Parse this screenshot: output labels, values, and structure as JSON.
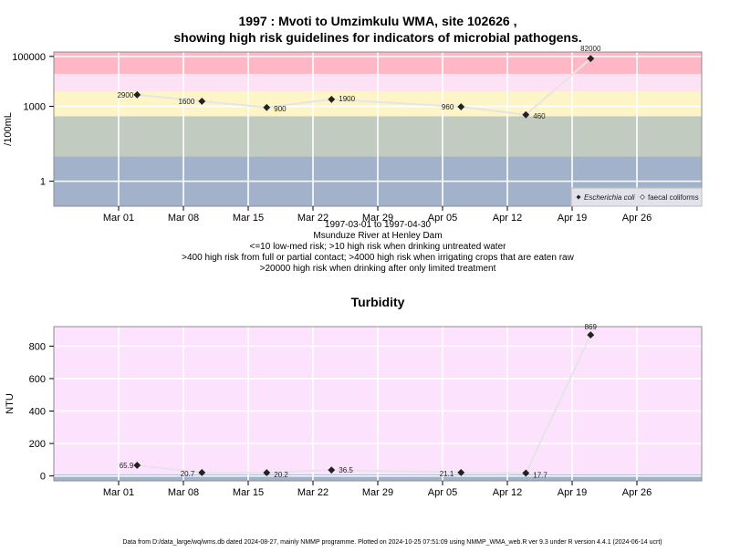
{
  "page": {
    "footer": "Data from D:/data_large/wq/wms.db dated 2024-08-27, mainly NMMP programme. Plotted on 2024-10-25 07:51:09 using NMMP_WMA_web.R ver 9.3 under R version 4.4.1 (2024-06-14 ucrt)"
  },
  "chart_data": [
    {
      "type": "line",
      "title_lines": [
        "1997 : Mvoti to Umzimkulu WMA, site 102626 ,",
        "showing high risk guidelines for indicators of microbial pathogens."
      ],
      "ylabel": "/100mL",
      "yscale": "log",
      "ylim": [
        0.1,
        150000
      ],
      "yticks": [
        {
          "value": 1,
          "label": "1"
        },
        {
          "value": 1000,
          "label": "1000"
        },
        {
          "value": 100000,
          "label": "100000"
        }
      ],
      "xticks": [
        "Mar 01",
        "Mar 08",
        "Mar 15",
        "Mar 22",
        "Mar 29",
        "Apr 05",
        "Apr 12",
        "Apr 19",
        "Apr 26"
      ],
      "xlabel_lines": [
        "1997-03-01 to 1997-04-30",
        "Msunduze River at Henley Dam",
        "<=10 low-med risk; >10 high risk when drinking untreated water",
        ">400 high risk from full or partial contact; >4000 high risk when irrigating crops that are eaten raw",
        ">20000 high risk when drinking after only limited treatment"
      ],
      "bands": [
        {
          "from": 0.1,
          "to": 10,
          "color": "#a3b2cb"
        },
        {
          "from": 10,
          "to": 400,
          "color": "#c2cbc0"
        },
        {
          "from": 400,
          "to": 4000,
          "color": "#fdf5c8"
        },
        {
          "from": 4000,
          "to": 20000,
          "color": "#fde2f6"
        },
        {
          "from": 20000,
          "to": 150000,
          "color": "#ffb6c5"
        }
      ],
      "legend": {
        "position": "bottom-right",
        "entries": [
          "Escherichia coli",
          "faecal coliforms"
        ]
      },
      "series": [
        {
          "name": "Escherichia coli",
          "color": "#e5e5e5",
          "points": [
            {
              "x": "1997-03-03",
              "y": 2900,
              "label": "2900"
            },
            {
              "x": "1997-03-10",
              "y": 1600,
              "label": "1600"
            },
            {
              "x": "1997-03-17",
              "y": 900,
              "label": "900"
            },
            {
              "x": "1997-03-24",
              "y": 1900,
              "label": "1900"
            },
            {
              "x": "1997-04-07",
              "y": 960,
              "label": "960"
            },
            {
              "x": "1997-04-14",
              "y": 460,
              "label": "460"
            },
            {
              "x": "1997-04-21",
              "y": 82000,
              "label": "82000"
            }
          ]
        }
      ]
    },
    {
      "type": "line",
      "title": "Turbidity",
      "ylabel": "NTU",
      "ylim": [
        -30,
        920
      ],
      "yticks": [
        {
          "value": 0,
          "label": "0"
        },
        {
          "value": 200,
          "label": "200"
        },
        {
          "value": 400,
          "label": "400"
        },
        {
          "value": 600,
          "label": "600"
        },
        {
          "value": 800,
          "label": "800"
        }
      ],
      "xticks": [
        "Mar 01",
        "Mar 08",
        "Mar 15",
        "Mar 22",
        "Mar 29",
        "Apr 05",
        "Apr 12",
        "Apr 19",
        "Apr 26"
      ],
      "bands": [
        {
          "from": -30,
          "to": 10,
          "color": "#a3b2cb"
        },
        {
          "from": 10,
          "to": 920,
          "color": "#fde2fe"
        }
      ],
      "series": [
        {
          "color": "#e5e5e5",
          "points": [
            {
              "x": "1997-03-03",
              "y": 65.9,
              "label": "65.9"
            },
            {
              "x": "1997-03-10",
              "y": 20.7,
              "label": "20.7"
            },
            {
              "x": "1997-03-17",
              "y": 20.2,
              "label": "20.2"
            },
            {
              "x": "1997-03-24",
              "y": 36.5,
              "label": "36.5"
            },
            {
              "x": "1997-04-07",
              "y": 21.1,
              "label": "21.1"
            },
            {
              "x": "1997-04-14",
              "y": 17.7,
              "label": "17.7"
            },
            {
              "x": "1997-04-21",
              "y": 869,
              "label": "869"
            }
          ]
        }
      ]
    }
  ]
}
